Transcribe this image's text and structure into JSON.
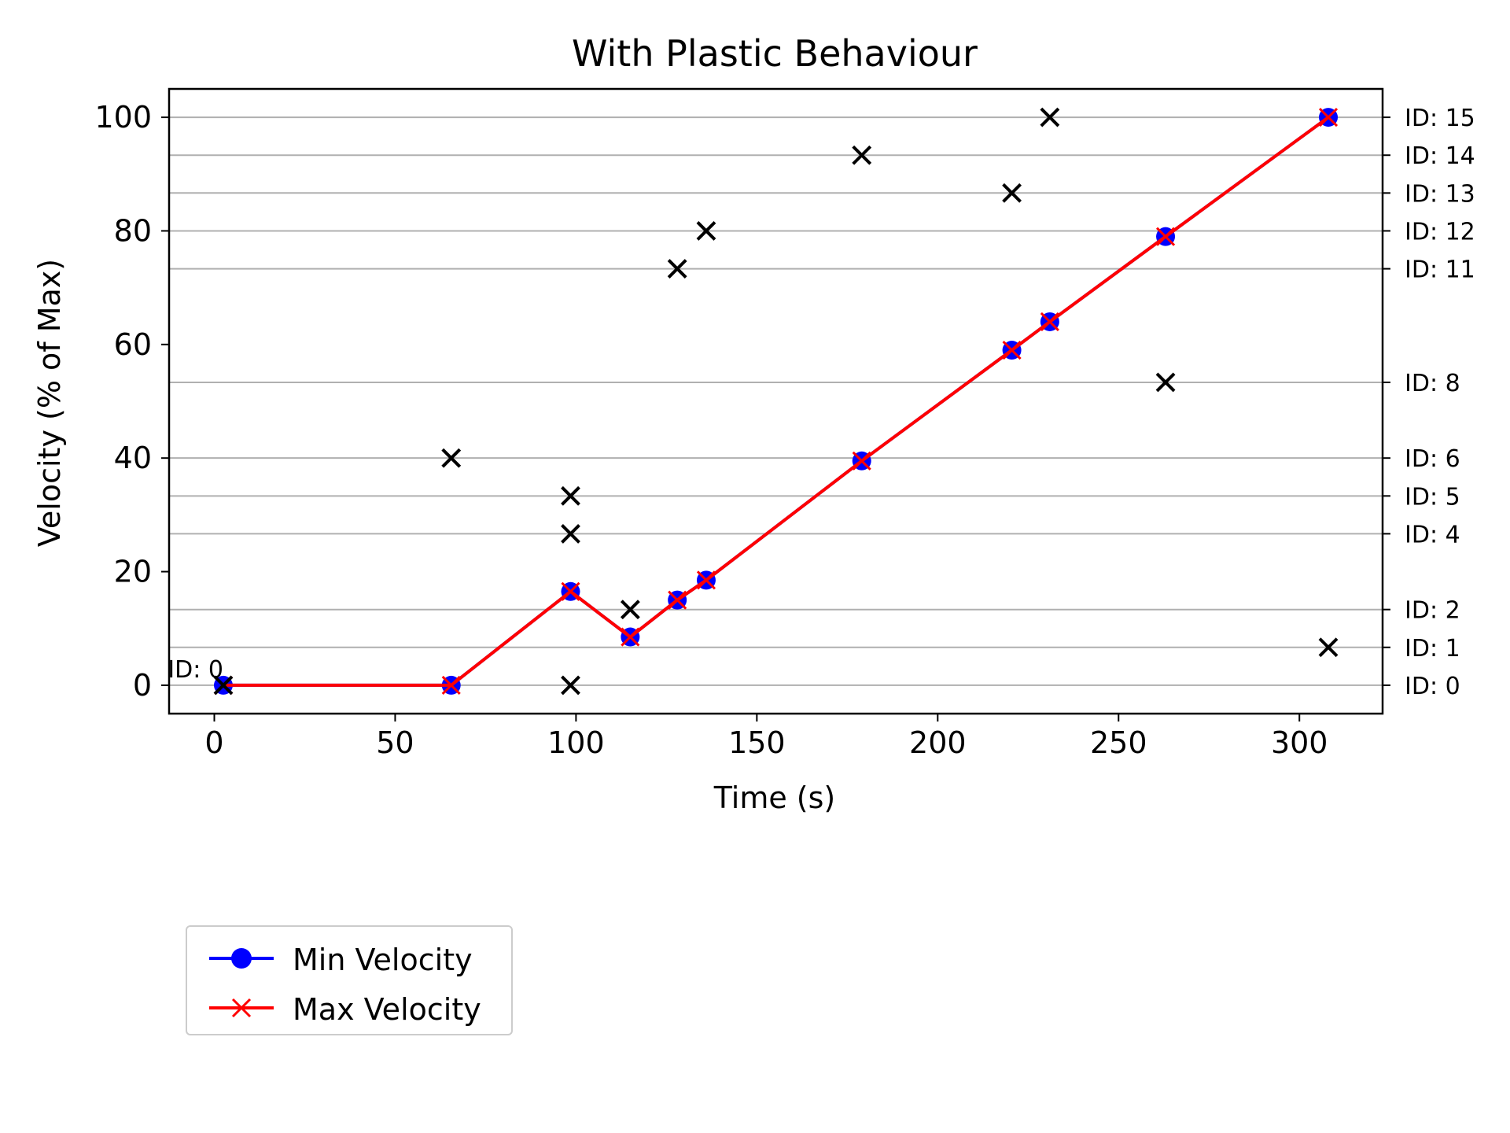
{
  "chart_data": {
    "type": "line",
    "title": "With Plastic Behaviour",
    "xlabel": "Time (s)",
    "ylabel": "Velocity (% of Max)",
    "xlim": [
      -12.5,
      323
    ],
    "ylim": [
      -5,
      105
    ],
    "xticks": [
      0,
      50,
      100,
      150,
      200,
      250,
      300
    ],
    "yticks": [
      0,
      20,
      40,
      60,
      80,
      100
    ],
    "grid": "horizontal lines at ID levels",
    "legend_position": "below-left",
    "series": [
      {
        "name": "Min Velocity",
        "color": "#0000ff",
        "marker": "circle",
        "x": [
          2.5,
          65.5,
          98.5,
          115,
          128,
          136,
          179,
          220.5,
          231,
          263,
          308
        ],
        "y": [
          0,
          0,
          16.5,
          8.5,
          15,
          18.5,
          39.5,
          59,
          64,
          79,
          100
        ]
      },
      {
        "name": "Max Velocity",
        "color": "#ff0000",
        "marker": "x",
        "x": [
          2.5,
          65.5,
          98.5,
          115,
          128,
          136,
          179,
          220.5,
          231,
          263,
          308
        ],
        "y": [
          0,
          0,
          16.5,
          8.5,
          15,
          18.5,
          39.5,
          59,
          64,
          79,
          100
        ]
      }
    ],
    "id_markers": {
      "color": "#000000",
      "marker": "x",
      "x": [
        2.5,
        65.5,
        98.5,
        98.5,
        98.5,
        115,
        128,
        136,
        179,
        220.5,
        231,
        263,
        308
      ],
      "y": [
        0,
        40,
        0,
        26.67,
        33.33,
        13.33,
        73.33,
        80,
        93.33,
        86.67,
        100,
        53.33,
        6.67
      ]
    },
    "id_levels": [
      {
        "label": "ID: 0",
        "value": 0
      },
      {
        "label": "ID: 1",
        "value": 6.67
      },
      {
        "label": "ID: 2",
        "value": 13.33
      },
      {
        "label": "ID: 4",
        "value": 26.67
      },
      {
        "label": "ID: 5",
        "value": 33.33
      },
      {
        "label": "ID: 6",
        "value": 40
      },
      {
        "label": "ID: 8",
        "value": 53.33
      },
      {
        "label": "ID: 11",
        "value": 73.33
      },
      {
        "label": "ID: 12",
        "value": 80
      },
      {
        "label": "ID: 13",
        "value": 86.67
      },
      {
        "label": "ID: 14",
        "value": 93.33
      },
      {
        "label": "ID: 15",
        "value": 100
      }
    ],
    "annotations": [
      {
        "text": "ID: 0",
        "x": 2.5,
        "y": 0
      }
    ]
  },
  "legend": {
    "items": [
      {
        "label": "Min Velocity",
        "color": "#0000ff",
        "marker": "circle"
      },
      {
        "label": "Max Velocity",
        "color": "#ff0000",
        "marker": "x"
      }
    ]
  }
}
